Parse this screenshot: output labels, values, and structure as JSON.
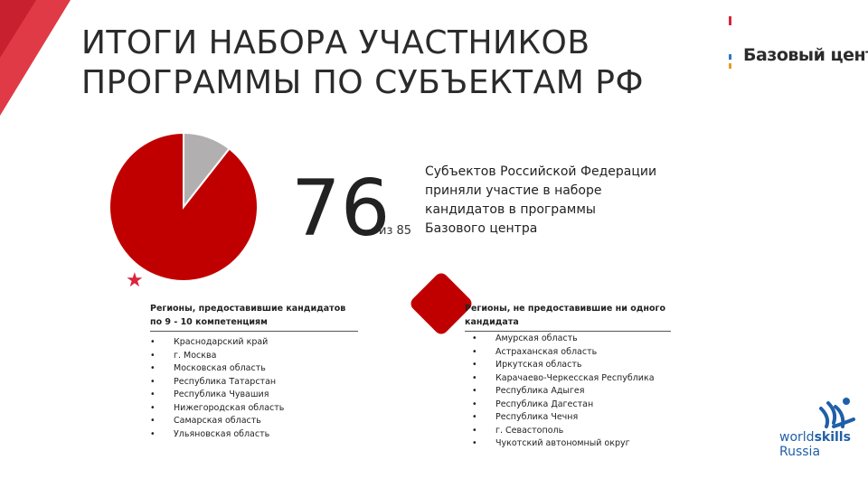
{
  "title": {
    "line1": "ИТОГИ НАБОРА УЧАСТНИКОВ",
    "line2": "ПРОГРАММЫ ПО СУБЪЕКТАМ РФ"
  },
  "logo": {
    "text": "Базовый центр"
  },
  "chart_data": {
    "type": "pie",
    "slices": [
      {
        "value": 76,
        "color": "#c00000"
      },
      {
        "value": 9,
        "color": "#b1afaf"
      }
    ],
    "total": 85
  },
  "stat": {
    "value": "76",
    "of_total": "из 85",
    "description": "Субъектов Российской Федерации приняли участие в наборе кандидатов в программы Базового центра"
  },
  "left_column": {
    "heading": "Регионы, предоставившие кандидатов по 9 - 10 компетенциям",
    "items": [
      "Краснодарский край",
      "г. Москва",
      "Московская область",
      "Республика Татарстан",
      "Республика Чувашия",
      "Нижегородская область",
      "Самарская область",
      "Ульяновская область"
    ]
  },
  "right_column": {
    "heading": "Регионы, не предоставившие ни одного кандидата",
    "items": [
      "Амурская область",
      "Астраханская область",
      "Иркутская область",
      "Карачаево-Черкесская Республика",
      "Республика Адыгея",
      "Республика Дагестан",
      "Республика Чечня",
      "г. Севастополь",
      "Чукотский автономный округ"
    ]
  },
  "worldskills": {
    "line1_a": "world",
    "line1_b": "skills",
    "line2": "Russia"
  },
  "colors": {
    "accent": "#c00000",
    "stripe": "#d7263d",
    "ws_blue": "#1f5fa8"
  }
}
